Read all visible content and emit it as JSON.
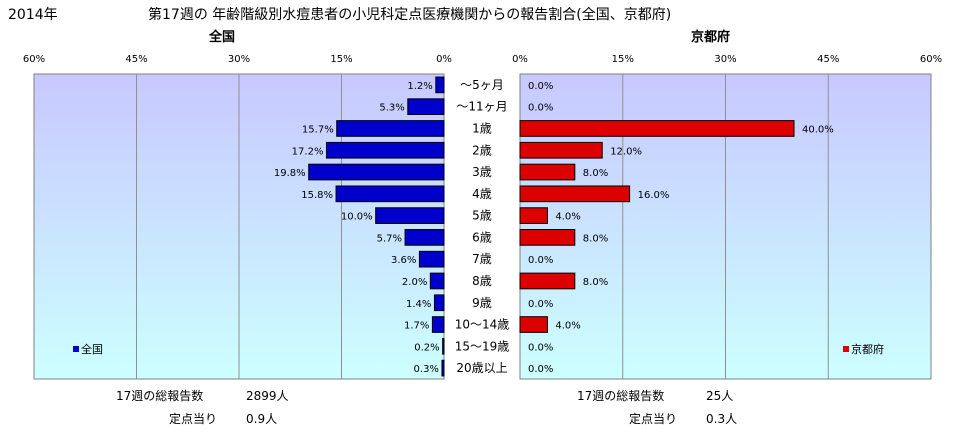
{
  "header": {
    "year": "2014年",
    "title": "第17週の 年齢階級別水痘患者の小児科定点医療機関からの報告割合(全国、京都府)"
  },
  "panels": {
    "left_title": "全国",
    "right_title": "京都府"
  },
  "colors": {
    "national": "#0000cc",
    "kyoto": "#dd0000",
    "plot_top": "#c8c8ff",
    "plot_bottom": "#ccffff"
  },
  "chart_data": {
    "type": "bar",
    "orientation": "horizontal-mirrored",
    "categories": [
      "〜5ヶ月",
      "〜11ヶ月",
      "1歳",
      "2歳",
      "3歳",
      "4歳",
      "5歳",
      "6歳",
      "7歳",
      "8歳",
      "9歳",
      "10〜14歳",
      "15〜19歳",
      "20歳以上"
    ],
    "series": [
      {
        "name": "全国",
        "values": [
          1.2,
          5.3,
          15.7,
          17.2,
          19.8,
          15.8,
          10.0,
          5.7,
          3.6,
          2.0,
          1.4,
          1.7,
          0.2,
          0.3
        ],
        "labels": [
          "1.2%",
          "5.3%",
          "15.7%",
          "17.2%",
          "19.8%",
          "15.8%",
          "10.0%",
          "5.7%",
          "3.6%",
          "2.0%",
          "1.4%",
          "1.7%",
          "0.2%",
          "0.3%"
        ]
      },
      {
        "name": "京都府",
        "values": [
          0.0,
          0.0,
          40.0,
          12.0,
          8.0,
          16.0,
          4.0,
          8.0,
          0.0,
          8.0,
          0.0,
          4.0,
          0.0,
          0.0
        ],
        "labels": [
          "0.0%",
          "0.0%",
          "40.0%",
          "12.0%",
          "8.0%",
          "16.0%",
          "4.0%",
          "8.0%",
          "0.0%",
          "8.0%",
          "0.0%",
          "4.0%",
          "0.0%",
          "0.0%"
        ]
      }
    ],
    "xlim": [
      0,
      60
    ],
    "ticks": [
      0,
      15,
      30,
      45,
      60
    ],
    "tick_labels": [
      "0%",
      "15%",
      "30%",
      "45%",
      "60%"
    ],
    "legend_placement": "bottom-left / bottom-right inside plot",
    "grid": true
  },
  "stats": {
    "national_total_label": "17週の総報告数",
    "national_total_value": "2899人",
    "national_per_label": "定点当り",
    "national_per_value": "0.9人",
    "kyoto_total_label": "17週の総報告数",
    "kyoto_total_value": "25人",
    "kyoto_per_label": "定点当り",
    "kyoto_per_value": "0.3人"
  }
}
